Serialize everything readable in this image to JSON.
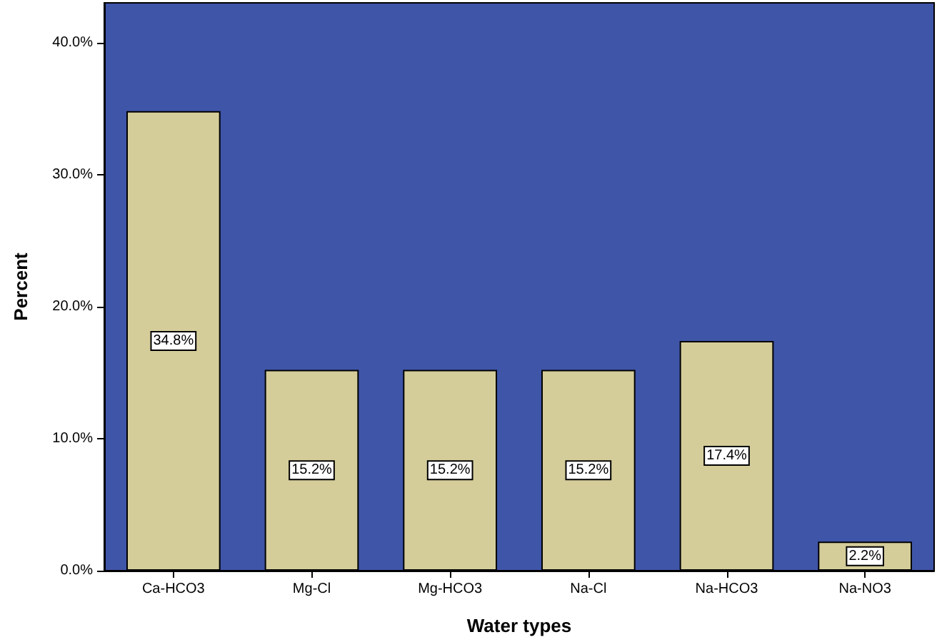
{
  "chart_data": {
    "type": "bar",
    "xlabel": "Water types",
    "ylabel": "Percent",
    "categories": [
      "Ca-HCO3",
      "Mg-Cl",
      "Mg-HCO3",
      "Na-Cl",
      "Na-HCO3",
      "Na-NO3"
    ],
    "values": [
      34.8,
      15.2,
      15.2,
      15.2,
      17.4,
      2.2
    ],
    "value_labels": [
      "34.8%",
      "15.2%",
      "15.2%",
      "15.2%",
      "17.4%",
      "2.2%"
    ],
    "color": "#d4cd9a",
    "ylim": [
      0,
      43
    ],
    "yticks": [
      {
        "value": 0,
        "label": "0.0%"
      },
      {
        "value": 10,
        "label": "10.0%"
      },
      {
        "value": 20,
        "label": "20.0%"
      },
      {
        "value": 30,
        "label": "30.0%"
      },
      {
        "value": 40,
        "label": "40.0%"
      }
    ],
    "grid": false
  }
}
